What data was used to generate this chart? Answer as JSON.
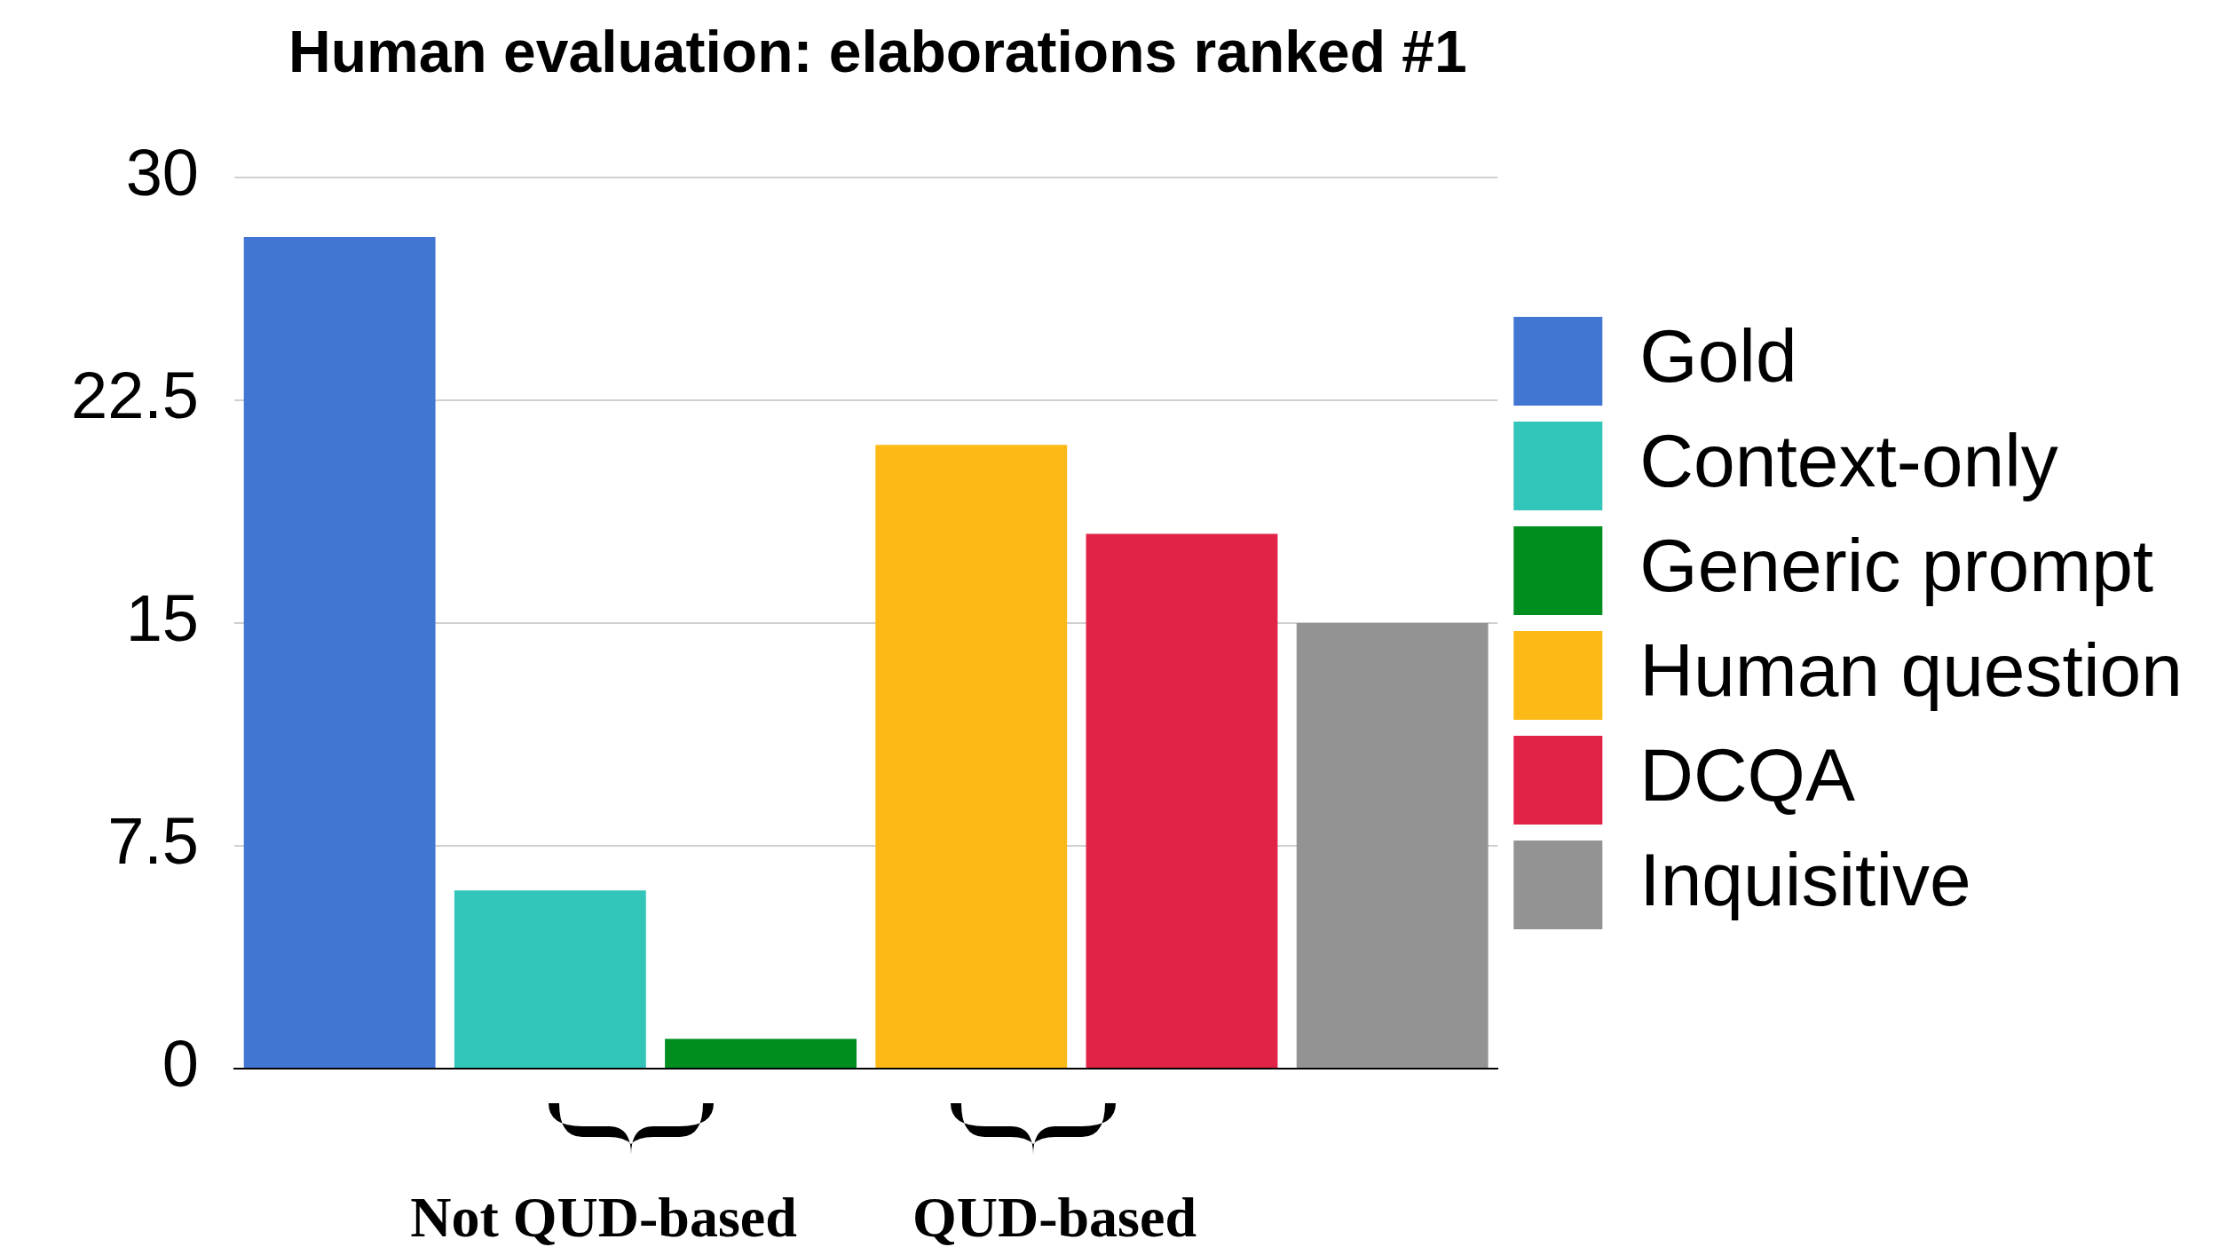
{
  "chart_data": {
    "type": "bar",
    "title": "Human evaluation: elaborations ranked #1",
    "categories": [
      null
    ],
    "series": [
      {
        "name": "Gold",
        "color": "#4176d3",
        "values": [
          28
        ]
      },
      {
        "name": "Context-only",
        "color": "#32c5b9",
        "values": [
          6
        ]
      },
      {
        "name": "Generic prompt",
        "color": "#008f1f",
        "values": [
          1
        ]
      },
      {
        "name": "Human question",
        "color": "#fdba17",
        "values": [
          21
        ]
      },
      {
        "name": "DCQA",
        "color": "#e02347",
        "values": [
          18
        ]
      },
      {
        "name": "Inquisitive",
        "color": "#939393",
        "values": [
          15
        ]
      }
    ],
    "ylim": [
      0,
      30
    ],
    "yticks": [
      0,
      7.5,
      15,
      22.5,
      30
    ],
    "grid": "y",
    "legend": "right",
    "tick_labels": "y",
    "annotations": [
      "Not QUD-based",
      "QUD-based"
    ]
  }
}
